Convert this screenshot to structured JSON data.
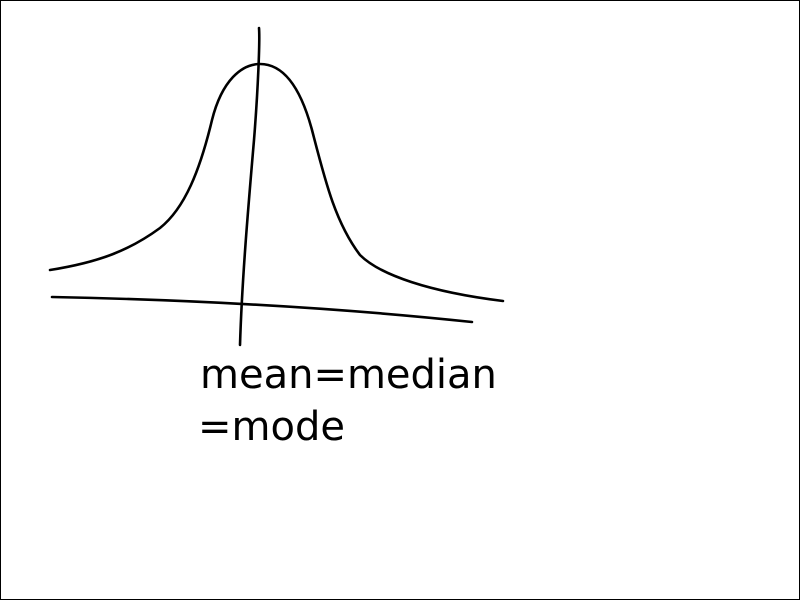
{
  "annotation": {
    "line1": "mean=median",
    "line2": "=mode"
  },
  "colors": {
    "stroke": "#000000",
    "background": "#ffffff"
  }
}
